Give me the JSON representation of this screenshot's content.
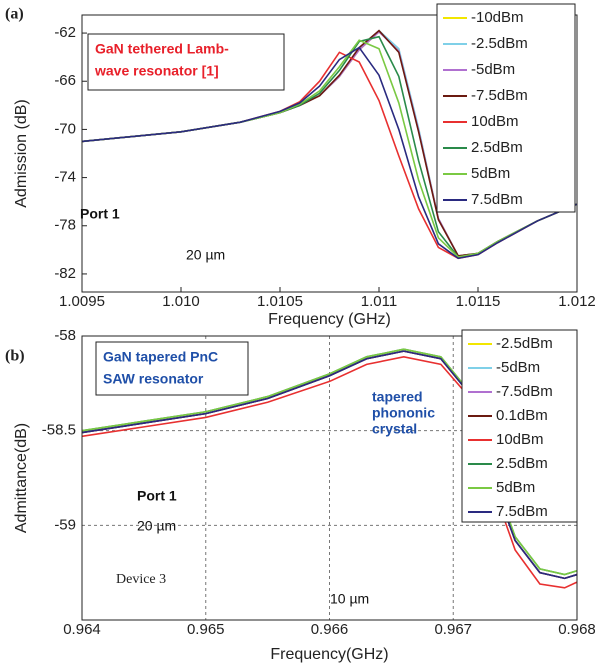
{
  "chart_data": [
    {
      "type": "line",
      "panel_label": "(a)",
      "annotation": [
        "GaN tethered Lamb-",
        "wave resonator [1]"
      ],
      "annotation_color": "#e8202a",
      "inset_labels": [
        "Port 1",
        "20 µm"
      ],
      "x_label": "Frequency (GHz)",
      "y_label": "Admission (dB)",
      "grid": false,
      "xlim": [
        1.0095,
        1.012
      ],
      "xticks": [
        1.0095,
        {
          "value": 1.01,
          "label": "1.010"
        },
        1.0105,
        1.011,
        1.0115,
        1.012
      ],
      "ylim": [
        -83.5,
        -60.5
      ],
      "yticks": [
        -62,
        -66,
        -70,
        -74,
        -78,
        -82
      ],
      "x": [
        1.0095,
        1.01,
        1.0103,
        1.0105,
        1.0106,
        1.0107,
        1.0108,
        1.0109,
        1.011,
        1.0111,
        1.0112,
        1.0113,
        1.0114,
        1.0115,
        1.0116,
        1.0118,
        1.012
      ],
      "series": [
        {
          "name": "-10dBm",
          "color": "#f2e600",
          "values": [
            -71.0,
            -70.2,
            -69.4,
            -68.6,
            -68.0,
            -67.2,
            -65.6,
            -63.4,
            -61.9,
            -63.4,
            -70.0,
            -77.4,
            -80.5,
            -80.3,
            -79.3,
            -77.6,
            -76.2
          ]
        },
        {
          "name": "-2.5dBm",
          "color": "#7fd0e8",
          "values": [
            -71.0,
            -70.2,
            -69.4,
            -68.6,
            -68.0,
            -67.2,
            -65.6,
            -63.3,
            -61.8,
            -63.3,
            -69.9,
            -77.4,
            -80.5,
            -80.3,
            -79.3,
            -77.6,
            -76.2
          ]
        },
        {
          "name": "-5dBm",
          "color": "#b070d0",
          "values": [
            -71.0,
            -70.2,
            -69.4,
            -68.6,
            -68.0,
            -67.2,
            -65.6,
            -63.4,
            -61.9,
            -63.5,
            -70.1,
            -77.4,
            -80.5,
            -80.3,
            -79.3,
            -77.6,
            -76.2
          ]
        },
        {
          "name": "-7.5dBm",
          "color": "#6b1a10",
          "values": [
            -71.0,
            -70.2,
            -69.4,
            -68.6,
            -68.0,
            -67.2,
            -65.5,
            -63.2,
            -61.8,
            -63.6,
            -70.2,
            -77.5,
            -80.5,
            -80.3,
            -79.3,
            -77.6,
            -76.2
          ]
        },
        {
          "name": "10dBm",
          "color": "#e83030",
          "values": [
            -71.0,
            -70.2,
            -69.4,
            -68.5,
            -67.7,
            -66.0,
            -63.6,
            -64.4,
            -67.6,
            -72.2,
            -76.6,
            -79.8,
            -80.7,
            -80.4,
            -79.4,
            -77.6,
            -76.2
          ]
        },
        {
          "name": "2.5dBm",
          "color": "#2a8a4a",
          "values": [
            -71.0,
            -70.2,
            -69.4,
            -68.6,
            -68.0,
            -67.0,
            -65.1,
            -62.7,
            -62.3,
            -65.6,
            -72.6,
            -78.5,
            -80.6,
            -80.3,
            -79.3,
            -77.6,
            -76.2
          ]
        },
        {
          "name": "5dBm",
          "color": "#7ac943",
          "values": [
            -71.0,
            -70.2,
            -69.4,
            -68.6,
            -67.9,
            -66.8,
            -64.8,
            -62.6,
            -63.3,
            -67.8,
            -74.2,
            -79.0,
            -80.6,
            -80.3,
            -79.3,
            -77.6,
            -76.2
          ]
        },
        {
          "name": "7.5dBm",
          "color": "#2a2a80",
          "values": [
            -71.0,
            -70.2,
            -69.4,
            -68.5,
            -67.8,
            -66.4,
            -64.2,
            -63.2,
            -65.5,
            -70.0,
            -75.6,
            -79.5,
            -80.7,
            -80.4,
            -79.4,
            -77.6,
            -76.2
          ]
        }
      ]
    },
    {
      "type": "line",
      "panel_label": "(b)",
      "annotation": [
        "GaN tapered  PnC",
        "SAW resonator"
      ],
      "annotation_color": "#1f4fa8",
      "inset_labels": [
        "Port 1",
        "20 µm",
        "tapered",
        "phononic",
        "crystal",
        "Device 3",
        "10 µm"
      ],
      "x_label": "Frequency(GHz)",
      "y_label": "Admittance(dB)",
      "grid": true,
      "xlim": [
        0.964,
        0.968
      ],
      "xticks": [
        0.964,
        0.965,
        0.966,
        0.967,
        0.968
      ],
      "ylim": [
        -59.5,
        -58
      ],
      "yticks": [
        -58,
        -58.5,
        -59
      ],
      "x": [
        0.964,
        0.9645,
        0.965,
        0.9655,
        0.966,
        0.9663,
        0.9666,
        0.9669,
        0.9671,
        0.9672,
        0.9673,
        0.9675,
        0.9677,
        0.9679,
        0.968
      ],
      "series": [
        {
          "name": "-2.5dBm",
          "color": "#f2e600",
          "values": [
            -58.51,
            -58.46,
            -58.41,
            -58.33,
            -58.21,
            -58.12,
            -58.08,
            -58.12,
            -58.28,
            -58.48,
            -58.72,
            -59.08,
            -59.25,
            -59.28,
            -59.26
          ]
        },
        {
          "name": "-5dBm",
          "color": "#7fd0e8",
          "values": [
            -58.51,
            -58.46,
            -58.41,
            -58.33,
            -58.21,
            -58.12,
            -58.08,
            -58.12,
            -58.28,
            -58.48,
            -58.72,
            -59.08,
            -59.25,
            -59.28,
            -59.26
          ]
        },
        {
          "name": "-7.5dBm",
          "color": "#b070d0",
          "values": [
            -58.51,
            -58.46,
            -58.41,
            -58.33,
            -58.21,
            -58.12,
            -58.08,
            -58.12,
            -58.28,
            -58.48,
            -58.72,
            -59.08,
            -59.25,
            -59.28,
            -59.26
          ]
        },
        {
          "name": "0.1dBm",
          "color": "#6b1a10",
          "values": [
            -58.51,
            -58.46,
            -58.41,
            -58.33,
            -58.21,
            -58.12,
            -58.08,
            -58.12,
            -58.28,
            -58.48,
            -58.72,
            -59.08,
            -59.25,
            -59.28,
            -59.26
          ]
        },
        {
          "name": "10dBm",
          "color": "#e83030",
          "values": [
            -58.53,
            -58.48,
            -58.43,
            -58.35,
            -58.24,
            -58.15,
            -58.11,
            -58.15,
            -58.3,
            -58.5,
            -58.76,
            -59.13,
            -59.31,
            -59.33,
            -59.3
          ]
        },
        {
          "name": "2.5dBm",
          "color": "#2a8a4a",
          "values": [
            -58.5,
            -58.45,
            -58.4,
            -58.32,
            -58.2,
            -58.11,
            -58.07,
            -58.11,
            -58.27,
            -58.47,
            -58.7,
            -59.06,
            -59.23,
            -59.26,
            -59.24
          ]
        },
        {
          "name": "5dBm",
          "color": "#7ac943",
          "values": [
            -58.5,
            -58.45,
            -58.4,
            -58.32,
            -58.2,
            -58.11,
            -58.07,
            -58.11,
            -58.27,
            -58.47,
            -58.7,
            -59.06,
            -59.23,
            -59.26,
            -59.24
          ]
        },
        {
          "name": "7.5dBm",
          "color": "#2a2a80",
          "values": [
            -58.51,
            -58.46,
            -58.41,
            -58.33,
            -58.21,
            -58.12,
            -58.08,
            -58.12,
            -58.28,
            -58.48,
            -58.72,
            -59.08,
            -59.25,
            -59.28,
            -59.26
          ]
        }
      ]
    }
  ]
}
